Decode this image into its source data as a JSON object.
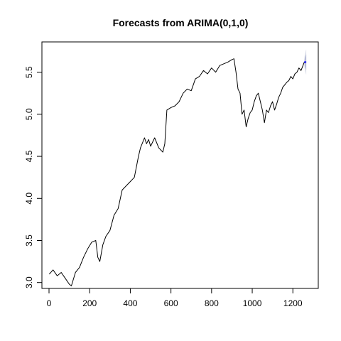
{
  "chart_data": {
    "type": "line",
    "title": "Forecasts from ARIMA(0,1,0)",
    "xlabel": "",
    "ylabel": "",
    "xlim": [
      -35,
      1325
    ],
    "ylim": [
      2.93,
      5.86
    ],
    "x_ticks": [
      0,
      200,
      400,
      600,
      800,
      1000,
      1200
    ],
    "x_tick_labels": [
      "0",
      "200",
      "400",
      "600",
      "800",
      "1000",
      "1200"
    ],
    "y_ticks": [
      3.0,
      3.5,
      4.0,
      4.5,
      5.0,
      5.5
    ],
    "y_tick_labels": [
      "3.0",
      "3.5",
      "4.0",
      "4.5",
      "5.0",
      "5.5"
    ],
    "grid": false,
    "series": [
      {
        "role": "observed",
        "color": "#000000",
        "x": [
          1,
          20,
          40,
          60,
          80,
          100,
          110,
          130,
          150,
          170,
          190,
          210,
          230,
          240,
          250,
          265,
          280,
          300,
          320,
          340,
          360,
          380,
          400,
          420,
          440,
          450,
          470,
          480,
          490,
          500,
          520,
          540,
          560,
          570,
          580,
          600,
          620,
          640,
          660,
          680,
          700,
          720,
          740,
          760,
          780,
          800,
          820,
          840,
          860,
          880,
          900,
          910,
          920,
          930,
          940,
          950,
          960,
          970,
          980,
          990,
          1000,
          1010,
          1020,
          1030,
          1040,
          1050,
          1060,
          1070,
          1080,
          1090,
          1100,
          1110,
          1120,
          1130,
          1140,
          1150,
          1160,
          1170,
          1180,
          1190,
          1200,
          1210,
          1220,
          1230,
          1240,
          1250,
          1256
        ],
        "y": [
          3.1,
          3.15,
          3.08,
          3.12,
          3.05,
          2.98,
          2.96,
          3.12,
          3.18,
          3.3,
          3.4,
          3.48,
          3.5,
          3.3,
          3.25,
          3.45,
          3.55,
          3.62,
          3.8,
          3.88,
          4.1,
          4.15,
          4.2,
          4.25,
          4.5,
          4.6,
          4.72,
          4.65,
          4.7,
          4.62,
          4.72,
          4.6,
          4.55,
          4.65,
          5.05,
          5.08,
          5.1,
          5.15,
          5.25,
          5.3,
          5.28,
          5.42,
          5.45,
          5.52,
          5.48,
          5.55,
          5.5,
          5.58,
          5.6,
          5.62,
          5.65,
          5.66,
          5.5,
          5.3,
          5.25,
          5.0,
          5.05,
          4.85,
          4.95,
          5.02,
          5.05,
          5.15,
          5.22,
          5.25,
          5.15,
          5.05,
          4.9,
          5.05,
          5.02,
          5.1,
          5.15,
          5.05,
          5.12,
          5.2,
          5.25,
          5.32,
          5.35,
          5.38,
          5.4,
          5.45,
          5.42,
          5.48,
          5.5,
          5.55,
          5.52,
          5.58,
          5.62
        ]
      },
      {
        "role": "forecast-mean",
        "color": "#0000ff",
        "x": [
          1256,
          1266
        ],
        "y": [
          5.62,
          5.62
        ]
      }
    ],
    "bands": [
      {
        "role": "outer-interval",
        "color": "#d9dde8",
        "x": [
          1256,
          1258,
          1260,
          1262,
          1264,
          1266
        ],
        "lower": [
          5.62,
          5.55,
          5.52,
          5.5,
          5.48,
          5.47
        ],
        "upper": [
          5.62,
          5.69,
          5.72,
          5.74,
          5.76,
          5.77
        ]
      },
      {
        "role": "inner-interval",
        "color": "#b6bbd6",
        "x": [
          1256,
          1258,
          1260,
          1262,
          1264,
          1266
        ],
        "lower": [
          5.62,
          5.58,
          5.56,
          5.55,
          5.54,
          5.53
        ],
        "upper": [
          5.62,
          5.66,
          5.68,
          5.69,
          5.7,
          5.71
        ]
      }
    ]
  }
}
